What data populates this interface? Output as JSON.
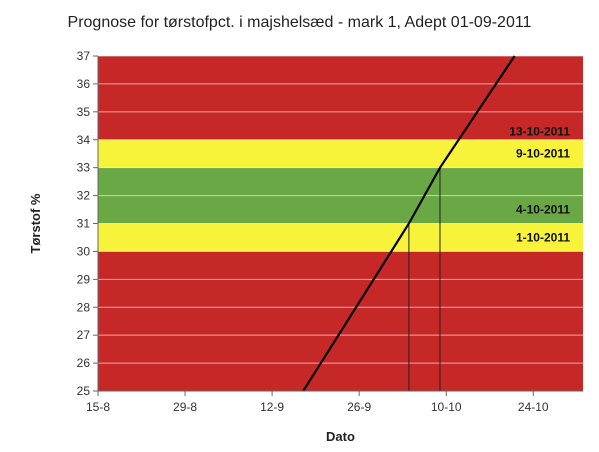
{
  "chart_data": {
    "type": "line",
    "title": "Prognose for tørstofpct. i majshelsæd - mark 1, Adept 01-09-2011",
    "xlabel": "Dato",
    "ylabel": "Tørstof %",
    "x_ticks": [
      "15-8",
      "29-8",
      "12-9",
      "26-9",
      "10-10",
      "24-10"
    ],
    "y_ticks": [
      25,
      26,
      27,
      28,
      29,
      30,
      31,
      32,
      33,
      34,
      35,
      36,
      37
    ],
    "xlim": [
      "2011-08-15",
      "2011-11-01"
    ],
    "ylim": [
      25,
      37
    ],
    "bands": [
      {
        "from": 25,
        "to": 30,
        "color": "#c62828"
      },
      {
        "from": 30,
        "to": 31,
        "color": "#f7f23a"
      },
      {
        "from": 31,
        "to": 33,
        "color": "#6aa745"
      },
      {
        "from": 33,
        "to": 34,
        "color": "#f7f23a"
      },
      {
        "from": 34,
        "to": 37,
        "color": "#c62828"
      }
    ],
    "series": [
      {
        "color": "#000000",
        "points": [
          {
            "x": "2011-09-17",
            "y": 25
          },
          {
            "x": "2011-10-04",
            "y": 31
          },
          {
            "x": "2011-10-09",
            "y": 33
          },
          {
            "x": "2011-10-21",
            "y": 37
          }
        ]
      }
    ],
    "annotations": [
      {
        "text": "13-10-2011",
        "y": 34.3
      },
      {
        "text": "9-10-2011",
        "y": 33.5
      },
      {
        "text": "4-10-2011",
        "y": 31.5
      },
      {
        "text": "1-10-2011",
        "y": 30.5
      }
    ],
    "markers": [
      {
        "x": "2011-10-04",
        "y": 31
      },
      {
        "x": "2011-10-09",
        "y": 33
      }
    ],
    "grid": true
  }
}
